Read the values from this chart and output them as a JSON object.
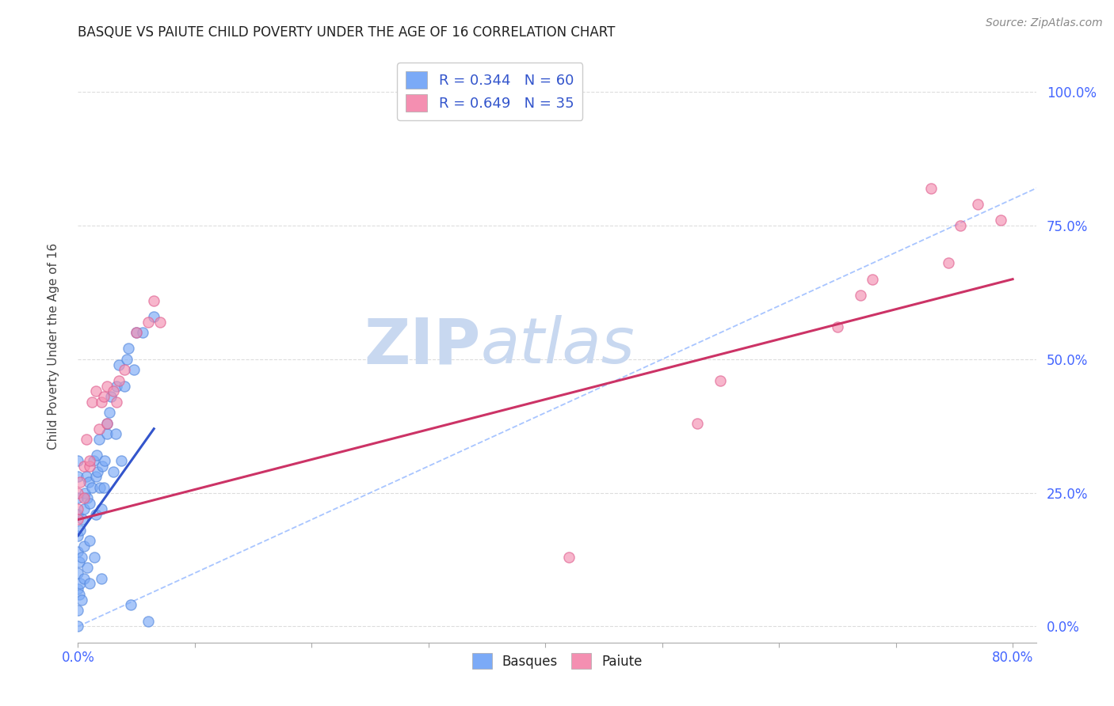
{
  "title": "BASQUE VS PAIUTE CHILD POVERTY UNDER THE AGE OF 16 CORRELATION CHART",
  "source": "Source: ZipAtlas.com",
  "ylabel": "Child Poverty Under the Age of 16",
  "xlim": [
    0.0,
    0.82
  ],
  "ylim": [
    -0.03,
    1.08
  ],
  "basque_color": "#7BAAF7",
  "paiute_color": "#F48FB1",
  "basque_edge": "#5588DD",
  "paiute_edge": "#E06090",
  "basque_R": 0.344,
  "basque_N": 60,
  "paiute_R": 0.649,
  "paiute_N": 35,
  "diagonal_color": "#99BBFF",
  "trend_basque_color": "#3355CC",
  "trend_paiute_color": "#CC3366",
  "grid_color": "#DDDDDD",
  "basque_x": [
    0.0,
    0.0,
    0.0,
    0.0,
    0.0,
    0.0,
    0.0,
    0.0,
    0.0,
    0.0,
    0.001,
    0.001,
    0.002,
    0.002,
    0.003,
    0.003,
    0.004,
    0.005,
    0.005,
    0.005,
    0.006,
    0.007,
    0.008,
    0.008,
    0.009,
    0.01,
    0.01,
    0.01,
    0.012,
    0.013,
    0.014,
    0.015,
    0.015,
    0.016,
    0.017,
    0.018,
    0.019,
    0.02,
    0.02,
    0.021,
    0.022,
    0.023,
    0.025,
    0.025,
    0.027,
    0.028,
    0.03,
    0.032,
    0.033,
    0.035,
    0.037,
    0.04,
    0.042,
    0.043,
    0.045,
    0.048,
    0.05,
    0.055,
    0.06,
    0.065
  ],
  "basque_y": [
    0.0,
    0.03,
    0.07,
    0.1,
    0.14,
    0.17,
    0.21,
    0.24,
    0.28,
    0.31,
    0.06,
    0.12,
    0.08,
    0.18,
    0.05,
    0.13,
    0.2,
    0.09,
    0.15,
    0.22,
    0.25,
    0.28,
    0.11,
    0.24,
    0.27,
    0.08,
    0.16,
    0.23,
    0.26,
    0.31,
    0.13,
    0.21,
    0.28,
    0.32,
    0.29,
    0.35,
    0.26,
    0.09,
    0.22,
    0.3,
    0.26,
    0.31,
    0.36,
    0.38,
    0.4,
    0.43,
    0.29,
    0.36,
    0.45,
    0.49,
    0.31,
    0.45,
    0.5,
    0.52,
    0.04,
    0.48,
    0.55,
    0.55,
    0.01,
    0.58
  ],
  "paiute_x": [
    0.0,
    0.0,
    0.0,
    0.002,
    0.005,
    0.005,
    0.007,
    0.01,
    0.01,
    0.012,
    0.015,
    0.018,
    0.02,
    0.022,
    0.025,
    0.025,
    0.03,
    0.033,
    0.035,
    0.04,
    0.05,
    0.06,
    0.065,
    0.07,
    0.42,
    0.53,
    0.55,
    0.65,
    0.67,
    0.68,
    0.73,
    0.745,
    0.755,
    0.77,
    0.79
  ],
  "paiute_y": [
    0.2,
    0.22,
    0.25,
    0.27,
    0.24,
    0.3,
    0.35,
    0.3,
    0.31,
    0.42,
    0.44,
    0.37,
    0.42,
    0.43,
    0.38,
    0.45,
    0.44,
    0.42,
    0.46,
    0.48,
    0.55,
    0.57,
    0.61,
    0.57,
    0.13,
    0.38,
    0.46,
    0.56,
    0.62,
    0.65,
    0.82,
    0.68,
    0.75,
    0.79,
    0.76
  ],
  "basque_trend_x": [
    0.0,
    0.065
  ],
  "basque_trend_y": [
    0.17,
    0.37
  ],
  "paiute_trend_x": [
    0.0,
    0.8
  ],
  "paiute_trend_y": [
    0.2,
    0.65
  ],
  "yticks": [
    0.0,
    0.25,
    0.5,
    0.75,
    1.0
  ],
  "ytick_labels": [
    "0.0%",
    "25.0%",
    "50.0%",
    "75.0%",
    "100.0%"
  ],
  "xtick_left_label": "0.0%",
  "xtick_right_label": "80.0%",
  "xticks_minor": [
    0.0,
    0.1,
    0.2,
    0.3,
    0.4,
    0.5,
    0.6,
    0.7,
    0.8
  ]
}
